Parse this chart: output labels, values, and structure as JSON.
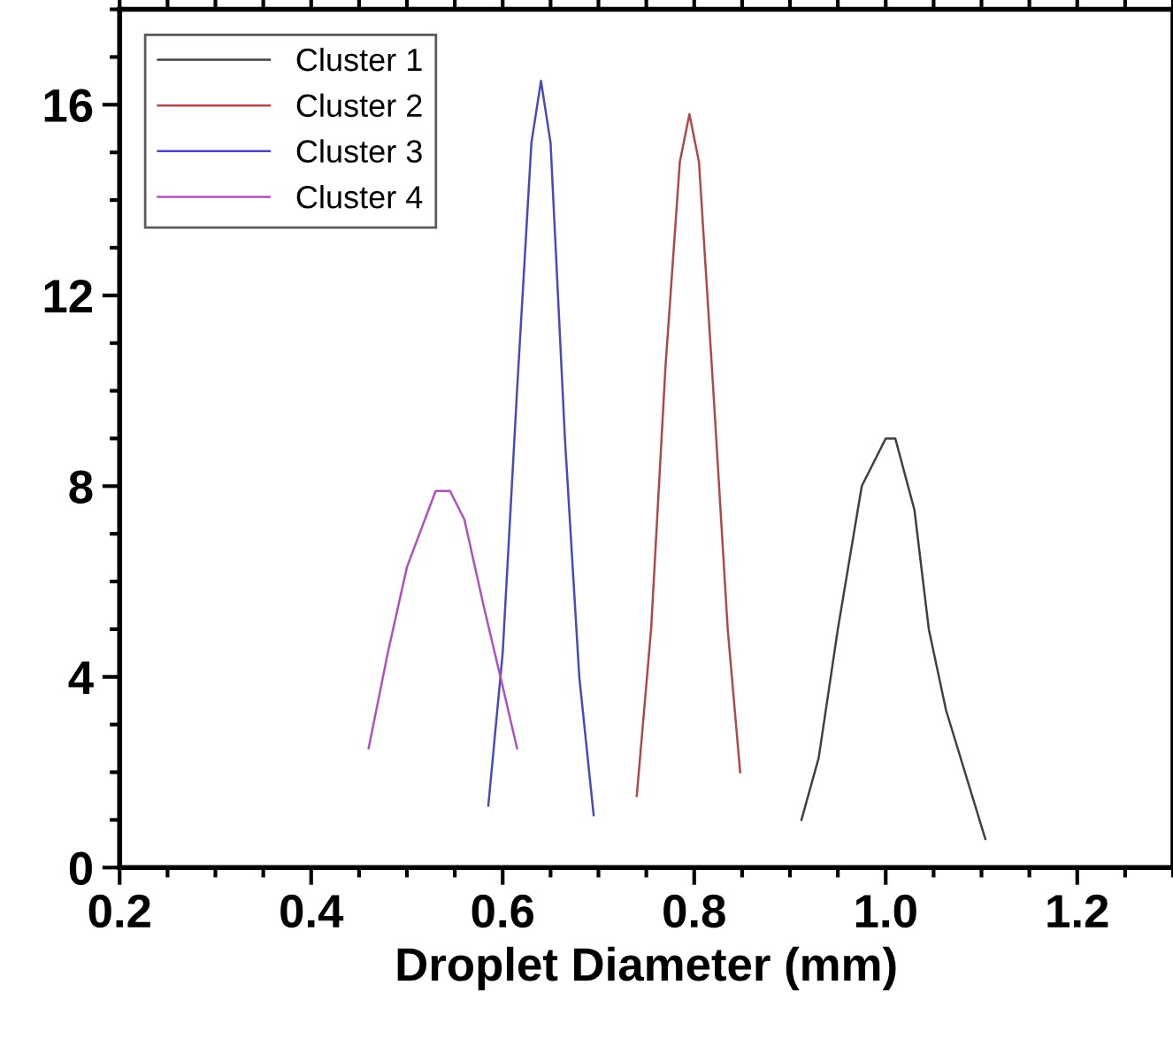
{
  "chart_data": {
    "type": "line",
    "xlabel": "Droplet Diameter (mm)",
    "xlim": [
      0.2,
      1.3
    ],
    "xticks": [
      {
        "value": 0.2,
        "label": "0.2"
      },
      {
        "value": 0.4,
        "label": "0.4"
      },
      {
        "value": 0.6,
        "label": "0.6"
      },
      {
        "value": 0.8,
        "label": "0.8"
      },
      {
        "value": 1.0,
        "label": "1.0"
      },
      {
        "value": 1.2,
        "label": "1.2"
      }
    ],
    "ylim": [
      0,
      18
    ],
    "yticks": [
      0,
      4,
      8,
      12,
      16
    ],
    "grid": false,
    "legend": "top left",
    "marker": "none",
    "line_style": "solid",
    "series": [
      {
        "name": "Cluster 1",
        "color": "#404040",
        "x": [
          0.912,
          0.93,
          0.95,
          0.975,
          1.0,
          1.01,
          1.03,
          1.045,
          1.063,
          1.104
        ],
        "values": [
          1.0,
          2.3,
          5.0,
          8.0,
          9.0,
          9.0,
          7.5,
          5.0,
          3.3,
          0.6
        ]
      },
      {
        "name": "Cluster 2",
        "color": "#b04848",
        "x": [
          0.74,
          0.755,
          0.77,
          0.785,
          0.795,
          0.805,
          0.82,
          0.835,
          0.848
        ],
        "values": [
          1.5,
          5.0,
          10.5,
          14.8,
          15.8,
          14.8,
          10.0,
          5.0,
          2.0
        ]
      },
      {
        "name": "Cluster 3",
        "color": "#4848c0",
        "x": [
          0.585,
          0.6,
          0.615,
          0.63,
          0.64,
          0.65,
          0.665,
          0.68,
          0.695
        ],
        "values": [
          1.3,
          4.5,
          10.0,
          15.2,
          16.5,
          15.2,
          9.0,
          4.0,
          1.1
        ]
      },
      {
        "name": "Cluster 4",
        "color": "#b050c0",
        "x": [
          0.46,
          0.48,
          0.5,
          0.53,
          0.545,
          0.56,
          0.58,
          0.6,
          0.615
        ],
        "values": [
          2.5,
          4.5,
          6.3,
          7.9,
          7.9,
          7.3,
          5.5,
          3.8,
          2.5
        ]
      }
    ]
  }
}
